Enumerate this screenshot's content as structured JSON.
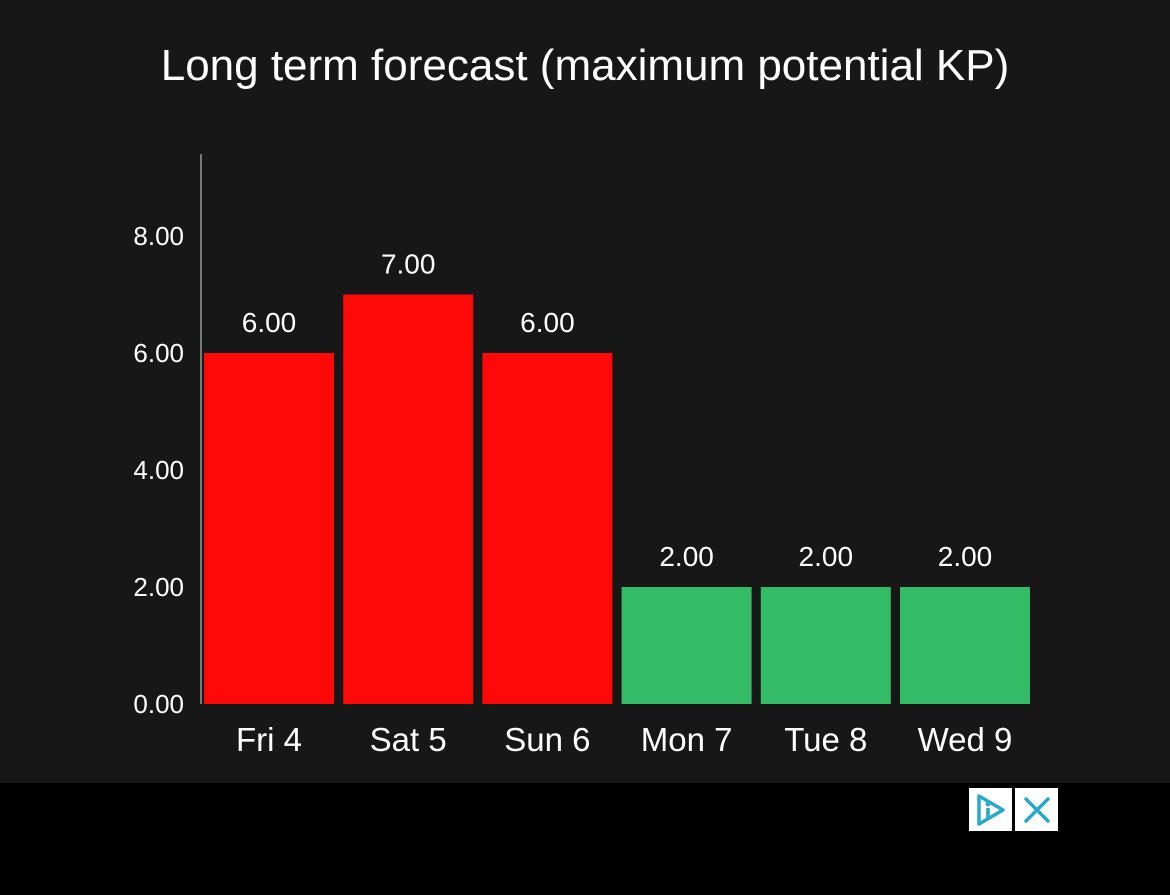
{
  "chart_data": {
    "type": "bar",
    "title": "Long term forecast (maximum potential KP)",
    "categories": [
      "Fri 4",
      "Sat 5",
      "Sun 6",
      "Mon 7",
      "Tue 8",
      "Wed 9"
    ],
    "values": [
      6,
      7,
      6,
      2,
      2,
      2
    ],
    "value_labels": [
      "6.00",
      "7.00",
      "6.00",
      "2.00",
      "2.00",
      "2.00"
    ],
    "bar_colors": [
      "#ff0808",
      "#ff0808",
      "#ff0808",
      "#33bb66",
      "#33bb66",
      "#33bb66"
    ],
    "y_ticks": [
      0,
      2,
      4,
      6,
      8
    ],
    "y_tick_labels": [
      "0.00",
      "2.00",
      "4.00",
      "6.00",
      "8.00"
    ],
    "ylim": [
      0,
      9.4
    ],
    "xlabel": "",
    "ylabel": "",
    "grid": false,
    "legend": "none"
  },
  "ad_bar": {
    "info_icon": "adchoices-icon",
    "close_icon": "close-icon",
    "icon_color": "#2aa8c8"
  }
}
